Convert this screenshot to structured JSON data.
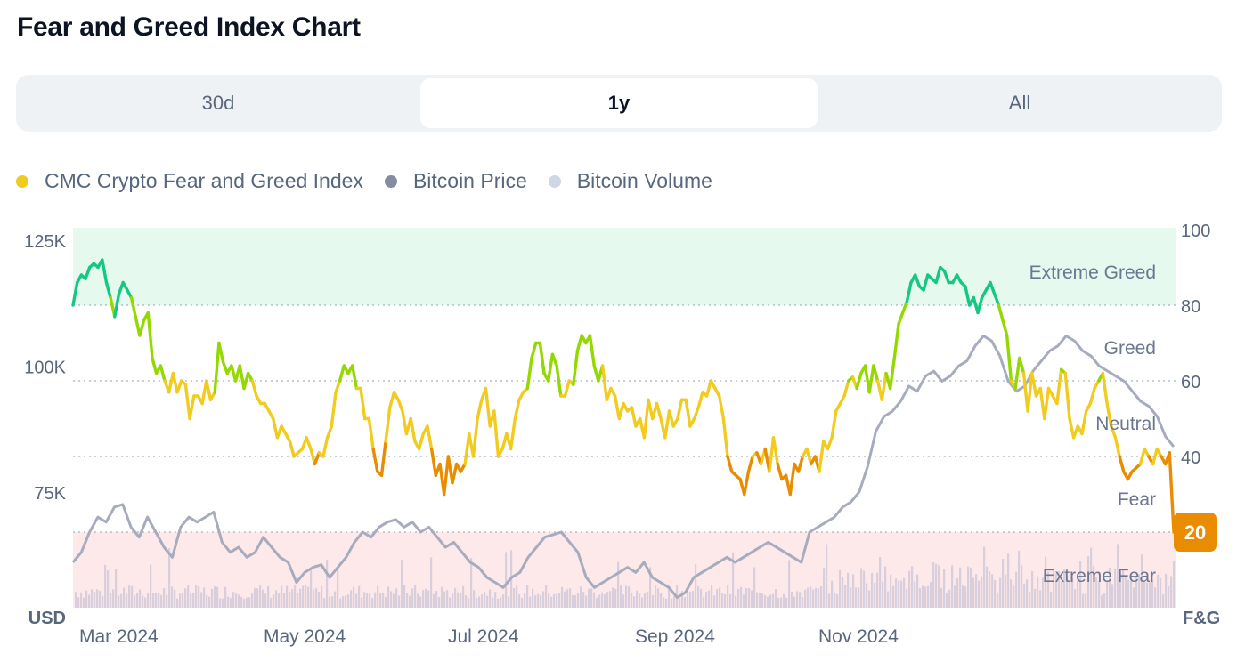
{
  "page": {
    "title": "Fear and Greed Index Chart"
  },
  "tabs": [
    {
      "label": "30d",
      "active": false
    },
    {
      "label": "1y",
      "active": true
    },
    {
      "label": "All",
      "active": false
    }
  ],
  "legend": [
    {
      "label": "CMC Crypto Fear and Greed Index",
      "color": "#f2cb1f"
    },
    {
      "label": "Bitcoin Price",
      "color": "#858ca2"
    },
    {
      "label": "Bitcoin Volume",
      "color": "#cfd6e4"
    }
  ],
  "chart_data": {
    "type": "line",
    "left_axis": {
      "unit_label": "USD",
      "ticks": [
        "125K",
        "100K",
        "75K"
      ],
      "tick_values": [
        125000,
        100000,
        75000
      ]
    },
    "right_axis": {
      "unit_label": "F&G",
      "ticks": [
        "100",
        "80",
        "60",
        "40",
        "20"
      ],
      "tick_values": [
        100,
        80,
        60,
        40,
        20
      ],
      "ylim": [
        0,
        100
      ]
    },
    "x_ticks": [
      "Mar 2024",
      "May 2024",
      "Jul 2024",
      "Sep 2024",
      "Nov 2024"
    ],
    "zones": [
      {
        "label": "Extreme Greed",
        "from": 80,
        "to": 100,
        "color": "#e6f9ee"
      },
      {
        "label": "Greed",
        "from": 60,
        "to": 80
      },
      {
        "label": "Neutral",
        "from": 40,
        "to": 60
      },
      {
        "label": "Fear",
        "from": 20,
        "to": 40
      },
      {
        "label": "Extreme Fear",
        "from": 0,
        "to": 20,
        "color": "#fde8ea"
      }
    ],
    "current_value": {
      "label": "20",
      "value": 20,
      "color": "#ea8c00"
    },
    "series": [
      {
        "name": "CMC Crypto Fear and Greed Index",
        "values": [
          80,
          86,
          88,
          87,
          90,
          91,
          90,
          92,
          86,
          82,
          77,
          83,
          86,
          84,
          82,
          77,
          72,
          76,
          78,
          66,
          62,
          64,
          60,
          57,
          62,
          57,
          60,
          59,
          50,
          56,
          56,
          54,
          60,
          55,
          57,
          70,
          65,
          62,
          64,
          60,
          64,
          58,
          62,
          60,
          56,
          54,
          54,
          52,
          50,
          45,
          48,
          46,
          44,
          40,
          41,
          42,
          45,
          42,
          38,
          41,
          40,
          45,
          48,
          57,
          60,
          64,
          62,
          64,
          58,
          58,
          50,
          50,
          42,
          36,
          35,
          44,
          53,
          57,
          55,
          52,
          46,
          50,
          44,
          42,
          46,
          48,
          42,
          35,
          38,
          30,
          40,
          33,
          38,
          36,
          38,
          46,
          40,
          50,
          55,
          58,
          48,
          52,
          40,
          42,
          46,
          42,
          50,
          55,
          57,
          58,
          66,
          70,
          70,
          62,
          60,
          67,
          64,
          56,
          56,
          60,
          59,
          68,
          72,
          70,
          72,
          64,
          60,
          64,
          55,
          58,
          56,
          50,
          54,
          52,
          53,
          48,
          50,
          45,
          55,
          50,
          54,
          50,
          45,
          52,
          48,
          50,
          55,
          55,
          48,
          50,
          53,
          57,
          56,
          60,
          58,
          56,
          50,
          40,
          36,
          35,
          34,
          30,
          36,
          40,
          41,
          38,
          42,
          36,
          45,
          38,
          34,
          35,
          30,
          38,
          36,
          40,
          42,
          38,
          40,
          36,
          44,
          42,
          45,
          52,
          54,
          56,
          60,
          61,
          58,
          62,
          64,
          57,
          64,
          60,
          55,
          62,
          58,
          66,
          75,
          78,
          81,
          86,
          88,
          85,
          84,
          88,
          87,
          86,
          90,
          89,
          86,
          86,
          88,
          86,
          85,
          80,
          82,
          78,
          82,
          84,
          86,
          83,
          80,
          76,
          72,
          60,
          58,
          66,
          62,
          52,
          62,
          56,
          58,
          50,
          58,
          56,
          54,
          63,
          62,
          50,
          45,
          48,
          46,
          52,
          54,
          58,
          60,
          62,
          54,
          48,
          45,
          40,
          36,
          34,
          36,
          37,
          38,
          42,
          40,
          38,
          42,
          40,
          38,
          41,
          20
        ]
      },
      {
        "name": "Bitcoin Price",
        "values": [
          61000,
          63000,
          67000,
          70000,
          69000,
          72000,
          72500,
          68000,
          66000,
          70000,
          67000,
          64000,
          62000,
          68000,
          70000,
          69000,
          70000,
          71000,
          65000,
          63000,
          64000,
          62000,
          63000,
          66000,
          64000,
          62000,
          61000,
          57000,
          59000,
          60000,
          60500,
          58000,
          60000,
          62000,
          65000,
          67000,
          66000,
          68000,
          69000,
          69500,
          68000,
          69000,
          67000,
          68000,
          66000,
          64000,
          65000,
          63000,
          61000,
          60000,
          58000,
          57000,
          56000,
          58000,
          59000,
          62000,
          64000,
          66000,
          66500,
          67000,
          65000,
          63000,
          58000,
          56000,
          57000,
          58000,
          59000,
          60000,
          59000,
          61000,
          58000,
          57000,
          56000,
          54000,
          55000,
          58000,
          59000,
          60000,
          61000,
          62000,
          61000,
          62000,
          63000,
          64000,
          65000,
          64000,
          63000,
          62000,
          61000,
          67000,
          68000,
          69000,
          70000,
          72000,
          73000,
          75000,
          80000,
          87000,
          90000,
          91000,
          93000,
          96000,
          95000,
          98000,
          99000,
          97000,
          98000,
          100000,
          101000,
          104000,
          106000,
          105000,
          102000,
          97000,
          95000,
          96000,
          99000,
          101000,
          103000,
          104000,
          106000,
          105000,
          103000,
          102000,
          100000,
          99000,
          98000,
          97000,
          95000,
          93000,
          92000,
          90000,
          86000,
          84000
        ]
      },
      {
        "name": "Bitcoin Volume"
      }
    ]
  }
}
